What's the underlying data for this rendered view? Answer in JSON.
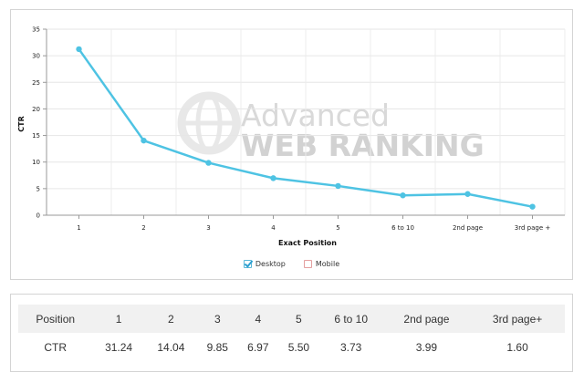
{
  "chart_data": {
    "type": "line",
    "categories": [
      "1",
      "2",
      "3",
      "4",
      "5",
      "6 to 10",
      "2nd page",
      "3rd page +"
    ],
    "series": [
      {
        "name": "Desktop",
        "values": [
          31.24,
          14.04,
          9.85,
          6.97,
          5.5,
          3.73,
          3.99,
          1.6
        ],
        "color": "#4ec3e3"
      }
    ],
    "xlabel": "Exact Position",
    "ylabel": "CTR",
    "ylim": [
      0,
      35
    ],
    "yticks": [
      0,
      5,
      10,
      15,
      20,
      25,
      30,
      35
    ],
    "grid": true,
    "legend_placement": "bottom-center",
    "legend": [
      {
        "label": "Desktop",
        "checked": true
      },
      {
        "label": "Mobile",
        "checked": false
      }
    ]
  },
  "watermark": {
    "line1": "Advanced",
    "line2": "WEB RANKING"
  },
  "table": {
    "row_header": "Position",
    "columns": [
      "1",
      "2",
      "3",
      "4",
      "5",
      "6 to 10",
      "2nd page",
      "3rd page+"
    ],
    "row_label": "CTR",
    "values": [
      "31.24",
      "14.04",
      "9.85",
      "6.97",
      "5.50",
      "3.73",
      "3.99",
      "1.60"
    ]
  }
}
